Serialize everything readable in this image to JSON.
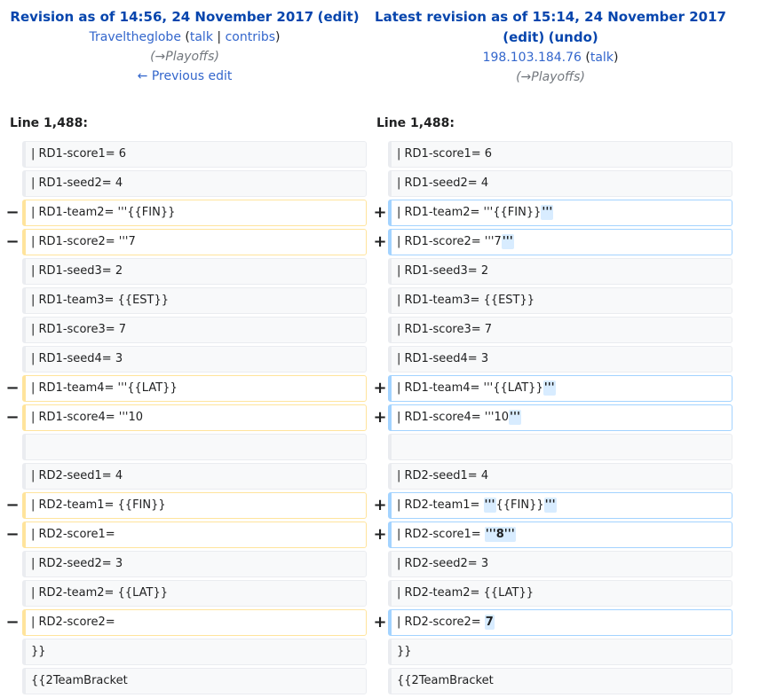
{
  "left_header": {
    "title_prefix": "Revision as of 14:56, 24 November 2017",
    "edit_link": "edit",
    "user": "Traveltheglobe",
    "talk": "talk",
    "contribs": "contribs",
    "comment_arrow": "→",
    "comment": "Playoffs",
    "prev_edit": "← Previous edit"
  },
  "right_header": {
    "title": "Latest revision as of 15:14, 24 November 2017",
    "edit_link": "edit",
    "undo_link": "undo",
    "user": "198.103.184.76",
    "talk": "talk",
    "comment_arrow": "→",
    "comment": "Playoffs"
  },
  "line_left": "Line 1,488:",
  "line_right": "Line 1,488:",
  "markers": {
    "minus": "−",
    "plus": "+"
  },
  "rows": [
    {
      "type": "context",
      "left": "| RD1-score1= 6",
      "right": "| RD1-score1= 6"
    },
    {
      "type": "context",
      "left": "| RD1-seed2= 4",
      "right": "| RD1-seed2= 4"
    },
    {
      "type": "change",
      "left": "| RD1-team2= '''{{FIN}}",
      "right_pre": "| RD1-team2= '''{{FIN}}",
      "right_hl": "'''",
      "right_post": ""
    },
    {
      "type": "change",
      "left": "| RD1-score2= '''7",
      "right_pre": "| RD1-score2= '''7",
      "right_hl": "'''",
      "right_post": ""
    },
    {
      "type": "context",
      "left": "| RD1-seed3= 2",
      "right": "| RD1-seed3= 2"
    },
    {
      "type": "context",
      "left": "| RD1-team3= {{EST}}",
      "right": "| RD1-team3= {{EST}}"
    },
    {
      "type": "context",
      "left": "| RD1-score3= 7",
      "right": "| RD1-score3= 7"
    },
    {
      "type": "context",
      "left": "| RD1-seed4= 3",
      "right": "| RD1-seed4= 3"
    },
    {
      "type": "change",
      "left": "| RD1-team4= '''{{LAT}}",
      "right_pre": "| RD1-team4= '''{{LAT}}",
      "right_hl": "'''",
      "right_post": ""
    },
    {
      "type": "change",
      "left": "| RD1-score4= '''10",
      "right_pre": "| RD1-score4= '''10",
      "right_hl": "'''",
      "right_post": ""
    },
    {
      "type": "context",
      "left": "",
      "right": ""
    },
    {
      "type": "context",
      "left": "| RD2-seed1= 4",
      "right": "| RD2-seed1= 4"
    },
    {
      "type": "change3",
      "left": "| RD2-team1= {{FIN}}",
      "right_pre": "| RD2-team1= ",
      "right_hl": "'''",
      "right_mid": "{{FIN}}",
      "right_hl2": "'''"
    },
    {
      "type": "change",
      "left": "| RD2-score1=",
      "right_pre": "| RD2-score1= ",
      "right_hl": "'''8'''",
      "right_post": ""
    },
    {
      "type": "context",
      "left": "| RD2-seed2= 3",
      "right": "| RD2-seed2= 3"
    },
    {
      "type": "context",
      "left": "| RD2-team2= {{LAT}}",
      "right": "| RD2-team2= {{LAT}}"
    },
    {
      "type": "change",
      "left": "| RD2-score2=",
      "right_pre": "| RD2-score2= ",
      "right_hl": "7",
      "right_post": ""
    },
    {
      "type": "context",
      "left": "}}",
      "right": "}}"
    },
    {
      "type": "context",
      "left": "{{2TeamBracket",
      "right": "{{2TeamBracket"
    }
  ]
}
